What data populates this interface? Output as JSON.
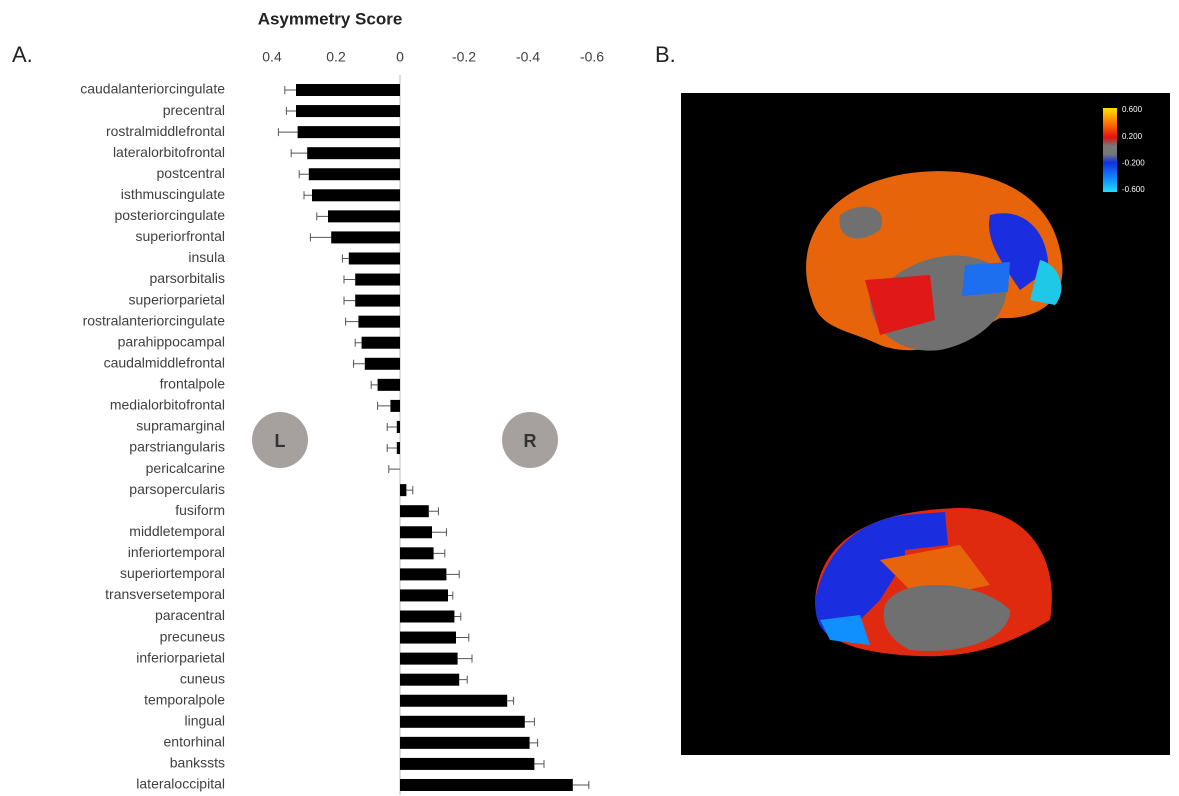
{
  "chart_data": {
    "type": "bar",
    "orientation": "horizontal",
    "title": "Asymmetry Score",
    "categories": [
      "caudalanteriorcingulate",
      "precentral",
      "rostralmiddlefrontal",
      "lateralorbitofrontal",
      "postcentral",
      "isthmuscingulate",
      "posteriorcingulate",
      "superiorfrontal",
      "insula",
      "parsorbitalis",
      "superiorparietal",
      "rostralanteriorcingulate",
      "parahippocampal",
      "caudalmiddlefrontal",
      "frontalpole",
      "medialorbitofrontal",
      "supramarginal",
      "parstriangularis",
      "pericalcarine",
      "parsopercularis",
      "fusiform",
      "middletemporal",
      "inferiortemporal",
      "superiortemporal",
      "transversetemporal",
      "paracentral",
      "precuneus",
      "inferiorparietal",
      "cuneus",
      "temporalpole",
      "lingual",
      "entorhinal",
      "bankssts",
      "lateraloccipital"
    ],
    "series": [
      {
        "color": "#000000",
        "values": [
          0.325,
          0.325,
          0.32,
          0.29,
          0.285,
          0.275,
          0.225,
          0.215,
          0.16,
          0.14,
          0.14,
          0.13,
          0.12,
          0.11,
          0.07,
          0.03,
          0.01,
          0.01,
          0,
          -0.02,
          -0.09,
          -0.1,
          -0.105,
          -0.145,
          -0.15,
          -0.17,
          -0.175,
          -0.18,
          -0.185,
          -0.335,
          -0.39,
          -0.405,
          -0.42,
          -0.54
        ],
        "errors": [
          0.035,
          0.03,
          0.06,
          0.05,
          0.03,
          0.025,
          0.035,
          0.065,
          0.02,
          0.035,
          0.035,
          0.04,
          0.02,
          0.035,
          0.02,
          0.04,
          0.03,
          0.03,
          0.035,
          0.02,
          0.03,
          0.045,
          0.035,
          0.04,
          0.015,
          0.02,
          0.04,
          0.045,
          0.025,
          0.02,
          0.03,
          0.025,
          0.03,
          0.05
        ]
      }
    ],
    "xlim": [
      0.4,
      -0.6
    ],
    "xticks": [
      0.4,
      0.2,
      0,
      -0.2,
      -0.4,
      -0.6
    ],
    "annotations": {
      "panel_a": "A.",
      "panel_b": "B.",
      "left": "L",
      "right": "R"
    },
    "colorbar": {
      "ticks": [
        {
          "value": 0.6,
          "label": "0.600"
        },
        {
          "value": 0.2,
          "label": "0.200"
        },
        {
          "value": -0.2,
          "label": "-0.200"
        },
        {
          "value": -0.6,
          "label": "-0.600"
        }
      ]
    }
  }
}
